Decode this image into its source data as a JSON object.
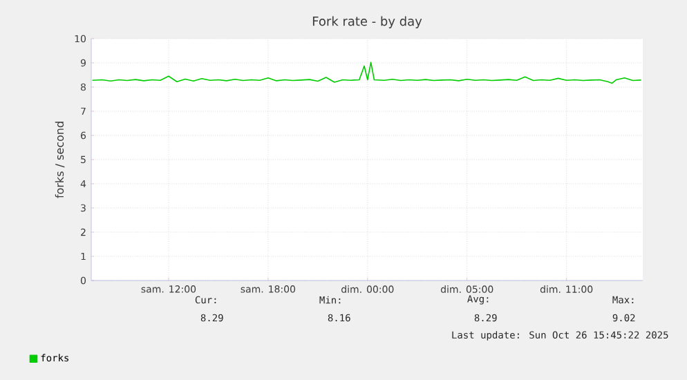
{
  "chart_data": {
    "type": "line",
    "title": "Fork rate - by day",
    "ylabel": "forks / second",
    "series": [
      {
        "name": "forks",
        "color": "#00cc00",
        "x": [
          "2025-10-25T05:24",
          "2025-10-25T06:00",
          "2025-10-25T06:30",
          "2025-10-25T07:00",
          "2025-10-25T07:30",
          "2025-10-25T08:00",
          "2025-10-25T08:30",
          "2025-10-25T09:00",
          "2025-10-25T09:30",
          "2025-10-25T10:00",
          "2025-10-25T10:30",
          "2025-10-25T11:00",
          "2025-10-25T11:30",
          "2025-10-25T12:00",
          "2025-10-25T12:30",
          "2025-10-25T13:00",
          "2025-10-25T13:30",
          "2025-10-25T14:00",
          "2025-10-25T14:30",
          "2025-10-25T15:00",
          "2025-10-25T15:30",
          "2025-10-25T16:00",
          "2025-10-25T16:30",
          "2025-10-25T17:00",
          "2025-10-25T17:30",
          "2025-10-25T18:00",
          "2025-10-25T18:30",
          "2025-10-25T19:00",
          "2025-10-25T19:30",
          "2025-10-25T20:00",
          "2025-10-25T20:30",
          "2025-10-25T21:00",
          "2025-10-25T21:30",
          "2025-10-25T21:48",
          "2025-10-25T22:00",
          "2025-10-25T22:12",
          "2025-10-25T22:24",
          "2025-10-25T23:00",
          "2025-10-25T23:30",
          "2025-10-26T00:00",
          "2025-10-26T00:30",
          "2025-10-26T01:00",
          "2025-10-26T01:30",
          "2025-10-26T02:00",
          "2025-10-26T02:30",
          "2025-10-26T03:00",
          "2025-10-26T03:30",
          "2025-10-26T04:00",
          "2025-10-26T04:30",
          "2025-10-26T05:00",
          "2025-10-26T05:30",
          "2025-10-26T06:00",
          "2025-10-26T06:30",
          "2025-10-26T07:00",
          "2025-10-26T07:30",
          "2025-10-26T08:00",
          "2025-10-26T08:30",
          "2025-10-26T09:00",
          "2025-10-26T09:30",
          "2025-10-26T10:00",
          "2025-10-26T10:30",
          "2025-10-26T11:00",
          "2025-10-26T11:30",
          "2025-10-26T12:00",
          "2025-10-26T12:30",
          "2025-10-26T12:45",
          "2025-10-26T13:00",
          "2025-10-26T13:30",
          "2025-10-26T14:00",
          "2025-10-26T14:30"
        ],
        "values": [
          8.28,
          8.3,
          8.25,
          8.3,
          8.27,
          8.31,
          8.26,
          8.3,
          8.28,
          8.45,
          8.22,
          8.33,
          8.25,
          8.35,
          8.28,
          8.3,
          8.26,
          8.32,
          8.27,
          8.3,
          8.28,
          8.38,
          8.26,
          8.3,
          8.27,
          8.29,
          8.31,
          8.24,
          8.4,
          8.2,
          8.3,
          8.28,
          8.3,
          8.87,
          8.3,
          9.02,
          8.3,
          8.28,
          8.32,
          8.27,
          8.3,
          8.28,
          8.31,
          8.27,
          8.29,
          8.3,
          8.26,
          8.32,
          8.28,
          8.3,
          8.27,
          8.29,
          8.31,
          8.28,
          8.42,
          8.27,
          8.3,
          8.28,
          8.36,
          8.28,
          8.3,
          8.27,
          8.29,
          8.3,
          8.22,
          8.16,
          8.3,
          8.38,
          8.27,
          8.29
        ]
      }
    ],
    "xlim": [
      "2025-10-25T05:20",
      "2025-10-26T14:36"
    ],
    "xticks": [
      {
        "value": "2025-10-25T10:00",
        "label": "sam. 12:00"
      },
      {
        "value": "2025-10-25T16:00",
        "label": "sam. 18:00"
      },
      {
        "value": "2025-10-25T22:00",
        "label": "dim. 00:00"
      },
      {
        "value": "2025-10-26T04:00",
        "label": "dim. 05:00"
      },
      {
        "value": "2025-10-26T10:00",
        "label": "dim. 11:00"
      }
    ],
    "ylim": [
      0,
      10
    ],
    "yticks": [
      0,
      1,
      2,
      3,
      4,
      5,
      6,
      7,
      8,
      9,
      10
    ],
    "grid": true,
    "legend": "bottom left",
    "annotations": [
      "Cur:",
      "Min:",
      "Avg:",
      "Max:",
      "8.29",
      "8.16",
      "8.29",
      "9.02",
      "Last update: Sun Oct 26 15:45:22 2025"
    ]
  }
}
